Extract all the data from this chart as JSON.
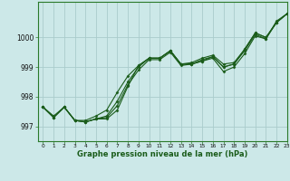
{
  "title": "Graphe pression niveau de la mer (hPa)",
  "background_color": "#cce8e8",
  "grid_color": "#aacccc",
  "line_color": "#1a5c1a",
  "xlim": [
    -0.5,
    23
  ],
  "ylim": [
    996.5,
    1001.2
  ],
  "yticks": [
    997,
    998,
    999,
    1000
  ],
  "xticks": [
    0,
    1,
    2,
    3,
    4,
    5,
    6,
    7,
    8,
    9,
    10,
    11,
    12,
    13,
    14,
    15,
    16,
    17,
    18,
    19,
    20,
    21,
    22,
    23
  ],
  "series": [
    [
      997.65,
      997.35,
      997.65,
      997.2,
      997.15,
      997.25,
      997.25,
      997.55,
      998.35,
      999.05,
      999.3,
      999.3,
      999.55,
      999.1,
      999.1,
      999.2,
      999.3,
      998.85,
      999.0,
      999.45,
      1000.05,
      999.95,
      1000.55,
      1000.8
    ],
    [
      997.65,
      997.3,
      997.65,
      997.2,
      997.15,
      997.25,
      997.3,
      997.7,
      998.4,
      998.9,
      999.25,
      999.25,
      999.5,
      999.05,
      999.1,
      999.2,
      999.35,
      999.0,
      999.1,
      999.6,
      1000.15,
      1000.0,
      1000.5,
      1000.8
    ],
    [
      997.65,
      997.3,
      997.65,
      997.2,
      997.15,
      997.25,
      997.35,
      997.85,
      998.5,
      999.0,
      999.3,
      999.3,
      999.55,
      999.1,
      999.1,
      999.25,
      999.35,
      999.0,
      999.1,
      999.55,
      1000.1,
      999.95,
      1000.5,
      1000.8
    ],
    [
      997.65,
      997.3,
      997.65,
      997.2,
      997.2,
      997.35,
      997.55,
      998.15,
      998.7,
      999.05,
      999.3,
      999.3,
      999.55,
      999.1,
      999.15,
      999.3,
      999.4,
      999.1,
      999.15,
      999.6,
      1000.15,
      1000.0,
      1000.5,
      1000.8
    ]
  ]
}
